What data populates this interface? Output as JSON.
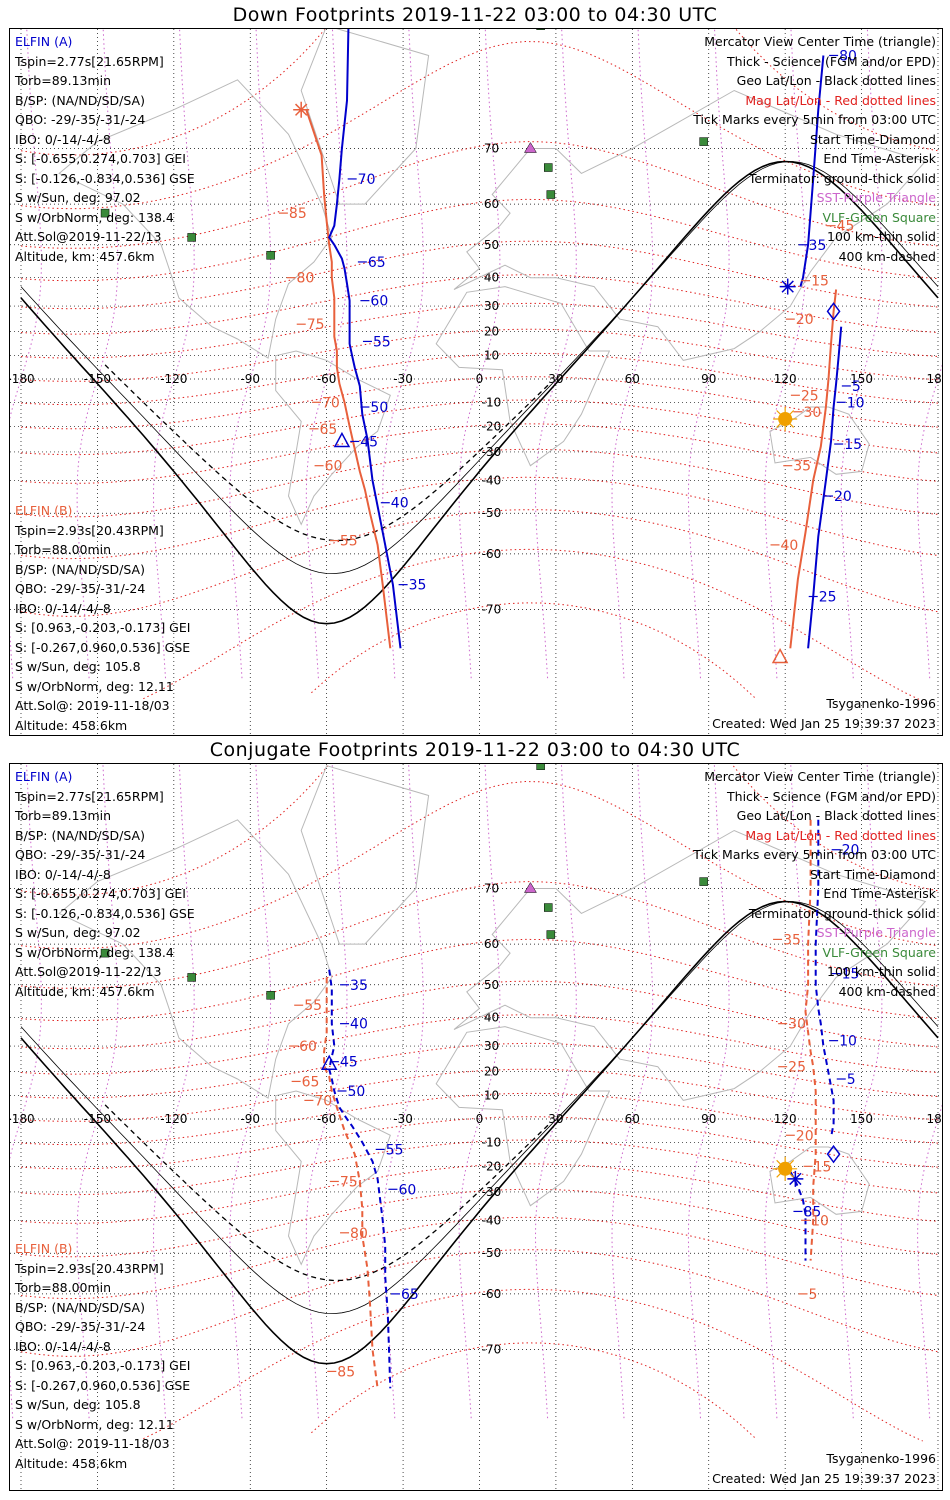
{
  "panels": [
    {
      "title": "Down Footprints 2019-11-22 03:00 to 04:30 UTC",
      "dashed_tracks": false,
      "a_track": [
        [
          -50,
          88
        ],
        [
          -52,
          76
        ],
        [
          -54,
          70
        ],
        [
          -55,
          65
        ],
        [
          -56,
          60
        ],
        [
          -57,
          55
        ],
        [
          -59,
          52
        ],
        [
          -57,
          50
        ],
        [
          -54,
          46
        ],
        [
          -53,
          43
        ],
        [
          -52,
          38
        ],
        [
          -51,
          32
        ],
        [
          -51,
          25
        ],
        [
          -51,
          20
        ],
        [
          -51,
          15
        ],
        [
          -50,
          10
        ],
        [
          -49,
          5
        ],
        [
          -47,
          -3
        ],
        [
          -46,
          -15
        ],
        [
          -44,
          -25
        ],
        [
          -42,
          -40
        ],
        [
          -40,
          -48
        ],
        [
          -37,
          -58
        ],
        [
          -34,
          -66
        ],
        [
          -31,
          -75
        ]
      ],
      "b_track": [
        [
          -68,
          75
        ],
        [
          -62,
          69
        ],
        [
          -61,
          62
        ],
        [
          -60,
          56
        ],
        [
          -59,
          50
        ],
        [
          -58,
          45
        ],
        [
          -58,
          40
        ],
        [
          -57,
          33
        ],
        [
          -57,
          25
        ],
        [
          -57,
          18
        ],
        [
          -56,
          12
        ],
        [
          -56,
          5
        ],
        [
          -55,
          -2
        ],
        [
          -53,
          -10
        ],
        [
          -51,
          -20
        ],
        [
          -47,
          -37
        ],
        [
          -45,
          -43
        ],
        [
          -43,
          -50
        ],
        [
          -40,
          -58
        ],
        [
          -38,
          -66
        ],
        [
          -35,
          -75
        ]
      ],
      "a_track2": [
        [
          135,
          80
        ],
        [
          133,
          75
        ],
        [
          131,
          65
        ],
        [
          129,
          50
        ],
        [
          127,
          40
        ],
        [
          126,
          37
        ]
      ],
      "b_track2": [
        [
          140,
          36
        ],
        [
          139,
          28
        ],
        [
          138,
          15
        ],
        [
          137,
          0
        ],
        [
          136,
          -12
        ],
        [
          134,
          -28
        ],
        [
          131,
          -40
        ],
        [
          128,
          -55
        ],
        [
          125,
          -65
        ],
        [
          122,
          -75
        ]
      ],
      "a_track2b": [
        [
          142,
          22
        ],
        [
          141,
          10
        ],
        [
          140,
          -2
        ],
        [
          139,
          -12
        ],
        [
          138,
          -26
        ],
        [
          136,
          -40
        ],
        [
          133,
          -56
        ],
        [
          131,
          -68
        ],
        [
          129,
          -75
        ]
      ],
      "a_labels": [
        {
          "text": "70",
          "lon": -49,
          "lat": 65
        },
        {
          "text": "65",
          "lon": -45,
          "lat": 45
        },
        {
          "text": "60",
          "lon": -44,
          "lat": 32
        },
        {
          "text": "55",
          "lon": -43,
          "lat": 16
        },
        {
          "text": "50",
          "lon": -44,
          "lat": -12
        },
        {
          "text": "45",
          "lon": -48,
          "lat": -26
        },
        {
          "text": "40",
          "lon": -36,
          "lat": -47
        },
        {
          "text": "35",
          "lon": -29,
          "lat": -66
        },
        {
          "text": "80",
          "lon": 140,
          "lat": 80
        },
        {
          "text": "35",
          "lon": 128,
          "lat": 50
        },
        {
          "text": "5",
          "lon": 145,
          "lat": -3
        },
        {
          "text": "10",
          "lon": 143,
          "lat": -10
        },
        {
          "text": "15",
          "lon": 142,
          "lat": -27
        },
        {
          "text": "20",
          "lon": 138,
          "lat": -45
        },
        {
          "text": "25",
          "lon": 132,
          "lat": -68
        }
      ],
      "b_labels": [
        {
          "text": "85",
          "lon": -76,
          "lat": 58
        },
        {
          "text": "80",
          "lon": -73,
          "lat": 40
        },
        {
          "text": "75",
          "lon": -69,
          "lat": 23
        },
        {
          "text": "70",
          "lon": -63,
          "lat": -10
        },
        {
          "text": "65",
          "lon": -64,
          "lat": -21
        },
        {
          "text": "60",
          "lon": -62,
          "lat": -35
        },
        {
          "text": "55",
          "lon": -56,
          "lat": -57
        },
        {
          "text": "45",
          "lon": 139,
          "lat": 55
        },
        {
          "text": "15",
          "lon": 129,
          "lat": 39
        },
        {
          "text": "20",
          "lon": 123,
          "lat": 25
        },
        {
          "text": "25",
          "lon": 125,
          "lat": -7
        },
        {
          "text": "30",
          "lon": 126,
          "lat": -14
        },
        {
          "text": "35",
          "lon": 122,
          "lat": -35
        },
        {
          "text": "40",
          "lon": 117,
          "lat": -58
        }
      ],
      "start_triangles": [
        {
          "lon": -54,
          "lat": -26,
          "color": "#0000cc"
        },
        {
          "lon": 118,
          "lat": -76,
          "color": "#e8603c"
        }
      ],
      "asterisks": [
        {
          "lon": -70,
          "lat": 75,
          "color": "#e8603c"
        },
        {
          "lon": 121,
          "lat": 37,
          "color": "#0000cc"
        }
      ],
      "diamond": {
        "lon": 139,
        "lat": 28,
        "color": "#0000cc"
      },
      "sun": {
        "lon": 120,
        "lat": -17
      }
    },
    {
      "title": "Conjugate Footprints 2019-11-22 03:00 to 04:30 UTC",
      "dashed_tracks": true,
      "a_track": [
        [
          -59,
          54
        ],
        [
          -58,
          49
        ],
        [
          -58,
          43
        ],
        [
          -58,
          38
        ],
        [
          -57,
          30
        ],
        [
          -58,
          26
        ],
        [
          -59,
          21
        ],
        [
          -58,
          17
        ],
        [
          -57,
          12
        ],
        [
          -55,
          5
        ],
        [
          -52,
          0
        ],
        [
          -50,
          -3
        ],
        [
          -46,
          -10
        ],
        [
          -42,
          -18
        ],
        [
          -40,
          -25
        ],
        [
          -39,
          -33
        ],
        [
          -38,
          -40
        ],
        [
          -37,
          -48
        ],
        [
          -37,
          -56
        ],
        [
          -36,
          -64
        ],
        [
          -35,
          -75
        ]
      ],
      "b_track": [
        [
          -60,
          52
        ],
        [
          -60,
          44
        ],
        [
          -60,
          35
        ],
        [
          -61,
          28
        ],
        [
          -61,
          22
        ],
        [
          -59,
          18
        ],
        [
          -58,
          12
        ],
        [
          -56,
          5
        ],
        [
          -53,
          -5
        ],
        [
          -49,
          -15
        ],
        [
          -47,
          -26
        ],
        [
          -46,
          -36
        ],
        [
          -46,
          -45
        ],
        [
          -44,
          -54
        ],
        [
          -43,
          -62
        ],
        [
          -42,
          -70
        ],
        [
          -40,
          -75
        ]
      ],
      "a_track2": [
        [
          133,
          78
        ],
        [
          133,
          70
        ],
        [
          132,
          60
        ],
        [
          132,
          50
        ],
        [
          133,
          43
        ],
        [
          134,
          38
        ],
        [
          135,
          30
        ],
        [
          136,
          25
        ],
        [
          138,
          14
        ],
        [
          139,
          8
        ],
        [
          139,
          -2
        ],
        [
          138,
          -8
        ]
      ],
      "b_track2": [
        [
          130,
          78
        ],
        [
          130,
          70
        ],
        [
          129,
          60
        ],
        [
          129,
          50
        ],
        [
          128,
          42
        ],
        [
          129,
          35
        ],
        [
          130,
          28
        ],
        [
          131,
          22
        ],
        [
          132,
          12
        ],
        [
          132,
          5
        ],
        [
          132,
          -5
        ],
        [
          132,
          -15
        ],
        [
          131,
          -28
        ],
        [
          131,
          -40
        ],
        [
          130,
          -52
        ]
      ],
      "a_track2b": [
        [
          122,
          -22
        ],
        [
          125,
          -28
        ],
        [
          127,
          -33
        ],
        [
          128,
          -38
        ],
        [
          128,
          -45
        ],
        [
          128,
          -52
        ]
      ],
      "a_labels": [
        {
          "text": "35",
          "lon": -52,
          "lat": 50
        },
        {
          "text": "40",
          "lon": -52,
          "lat": 38
        },
        {
          "text": "45",
          "lon": -56,
          "lat": 24
        },
        {
          "text": "50",
          "lon": -53,
          "lat": 12
        },
        {
          "text": "55",
          "lon": -38,
          "lat": -13
        },
        {
          "text": "60",
          "lon": -33,
          "lat": -29
        },
        {
          "text": "65",
          "lon": -32,
          "lat": -60
        },
        {
          "text": "20",
          "lon": 141,
          "lat": 75
        },
        {
          "text": "15",
          "lon": 141,
          "lat": 53
        },
        {
          "text": "10",
          "lon": 140,
          "lat": 32
        },
        {
          "text": "5",
          "lon": 143,
          "lat": 17
        },
        {
          "text": "85",
          "lon": 126,
          "lat": -37
        }
      ],
      "b_labels": [
        {
          "text": "55",
          "lon": -70,
          "lat": 44
        },
        {
          "text": "60",
          "lon": -72,
          "lat": 30
        },
        {
          "text": "65",
          "lon": -71,
          "lat": 16
        },
        {
          "text": "70",
          "lon": -66,
          "lat": 8
        },
        {
          "text": "75",
          "lon": -56,
          "lat": -26
        },
        {
          "text": "80",
          "lon": -52,
          "lat": -44
        },
        {
          "text": "85",
          "lon": -57,
          "lat": -73
        },
        {
          "text": "35",
          "lon": 118,
          "lat": 61
        },
        {
          "text": "30",
          "lon": 120,
          "lat": 38
        },
        {
          "text": "25",
          "lon": 120,
          "lat": 22
        },
        {
          "text": "20",
          "lon": 123,
          "lat": -7
        },
        {
          "text": "15",
          "lon": 130,
          "lat": -20
        },
        {
          "text": "10",
          "lon": 129,
          "lat": -40
        },
        {
          "text": "5",
          "lon": 128,
          "lat": -60
        }
      ],
      "start_triangles": [
        {
          "lon": -59,
          "lat": 23,
          "color": "#0000cc"
        }
      ],
      "asterisks": [
        {
          "lon": 124,
          "lat": -25,
          "color": "#0000cc"
        }
      ],
      "diamond": {
        "lon": 139,
        "lat": -15,
        "color": "#0000cc"
      },
      "sun": {
        "lon": 120,
        "lat": -21
      }
    }
  ],
  "info_a": {
    "name": "ELFIN (A)",
    "tspin": "Tspin=2.77s[21.65RPM]",
    "torb": "Torb=89.13min",
    "bsp": "B/SP: (NA/ND/SD/SA)",
    "qbo": "QBO: -29/-35/-31/-24",
    "ibo": "IBO: 0/-14/-4/-8",
    "s_gei": "S: [-0.655,0.274,0.703] GEI",
    "s_gse": "S: [-0.126,-0.834,0.536] GSE",
    "s_sun": "S w/Sun, deg: 97.02",
    "s_orb": "S w/OrbNorm, deg: 138.4",
    "att": "Att.Sol@2019-11-22/13",
    "alt": "Altitude, km: 457.6km"
  },
  "info_b": {
    "name": "ELFIN (B)",
    "tspin": "Tspin=2.93s[20.43RPM]",
    "torb": "Torb=88.00min",
    "bsp": "B/SP: (NA/ND/SD/SA)",
    "qbo": "QBO: -29/-35/-31/-24",
    "ibo": "IBO: 0/-14/-4/-8",
    "s_gei": "S: [0.963,-0.203,-0.173] GEI",
    "s_gse": "S: [-0.267,0.960,0.536] GSE",
    "s_sun": "S w/Sun, deg: 105.8",
    "s_orb": "S w/OrbNorm, deg: 12.11",
    "att": "Att.Sol@: 2019-11-18/03",
    "alt": "Altitude: 458.6km"
  },
  "legend": {
    "l1": "Mercator View Center Time (triangle)",
    "l2": "Thick - Science (FGM and/or EPD)",
    "l3": "Geo Lat/Lon - Black dotted lines",
    "l4": "Mag Lat/Lon - Red dotted lines",
    "l5": "Tick Marks every 5min from 03:00 UTC",
    "l6": "Start Time-Diamond",
    "l7": "End Time-Asterisk",
    "l8": "Terminator: ground-thick solid",
    "l9": "SST-Purple Triangle",
    "l10": "VLF-Green Square",
    "l11": "100 km-thin solid",
    "l12": "400 km-dashed"
  },
  "footer": {
    "model": "Tsyganenko-1996",
    "created": "Created: Wed Jan 25 19:39:37 2023"
  },
  "axis": {
    "lon_ticks": [
      -180,
      -150,
      -120,
      -90,
      -60,
      -30,
      0,
      30,
      60,
      90,
      120,
      150,
      180
    ],
    "lat_ticks": [
      70,
      60,
      50,
      40,
      30,
      20,
      10,
      0,
      -10,
      -20,
      -30,
      -40,
      -50,
      -60,
      -70
    ]
  },
  "sites": {
    "sst": [
      {
        "lon": 18,
        "lat": 84
      },
      {
        "lon": 20,
        "lat": 70
      }
    ],
    "vlf": [
      {
        "lon": -147,
        "lat": 58
      },
      {
        "lon": -113,
        "lat": 52
      },
      {
        "lon": -82,
        "lat": 47
      },
      {
        "lon": 27,
        "lat": 67
      },
      {
        "lon": 28,
        "lat": 62
      },
      {
        "lon": 88,
        "lat": 71
      },
      {
        "lon": 24,
        "lat": 82
      }
    ]
  },
  "colors": {
    "elfin_a": "#0000cc",
    "elfin_b": "#e8603c",
    "mag_grid": "#e0201e",
    "sst": "#cc66cc",
    "vlf": "#3a8a3a",
    "sun": "#f0a000"
  }
}
